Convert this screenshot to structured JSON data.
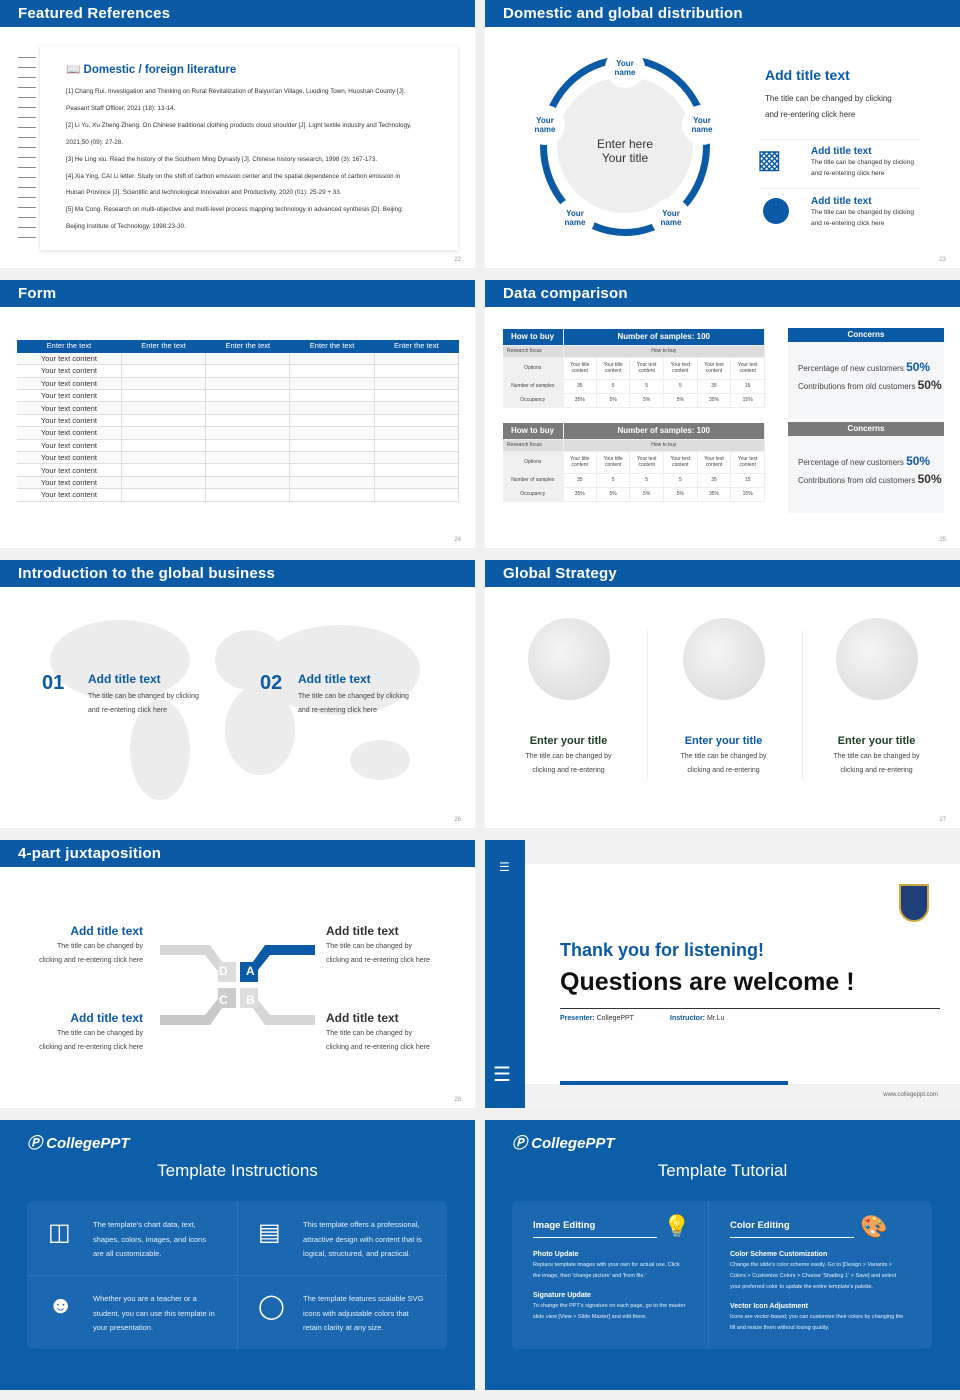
{
  "s22": {
    "title": "Featured References",
    "heading": "Domestic / foreign literature",
    "lines": [
      "[1] Chang Rui. Investigation and Thinking on Rural Revitalization of Baiyun'an Village, Luoding Town, Huoshan County [J].",
      "Peasant Staff Officer, 2021 (18): 13-14.",
      "[2] Li Yu, Xu Zheng Zheng. On Chinese traditional clothing products cloud shoulder [J]. Light textile industry and Technology,",
      "2021,50 (09): 27-28.",
      "[3] He Ling xiu. Read the history of the Southern Ming Dynasty [J]. Chinese history research, 1998 (3): 167-173.",
      "[4] Xia Ying, CAI Li letter. Study on the shift of carbon emission center and the spatial dependence of carbon emission in",
      "Hunan Province [J]. Scientific and technological Innovation and Productivity, 2020 (01): 25-29 + 33.",
      "[5] Ma Cong. Research on multi-objective and multi-level process mapping technology in advanced synthesis [D]. Beijing:",
      "Beijing Institute of Technology, 1998:23-30."
    ],
    "page": "22"
  },
  "s23": {
    "title": "Domestic and global distribution",
    "ring_label": "Your name",
    "center1": "Enter here",
    "center2": "Your title",
    "main_title": "Add title text",
    "main_desc1": "The title can be changed by clicking",
    "main_desc2": "and re-entering click here",
    "items": [
      {
        "icon": "china-map-icon",
        "title": "Add title text",
        "d1": "The title can be changed by clicking",
        "d2": "and re-entering click here"
      },
      {
        "icon": "globe-icon",
        "title": "Add title text",
        "d1": "The title can be changed by clicking",
        "d2": "and re-entering click here"
      }
    ],
    "page": "23"
  },
  "s24": {
    "title": "Form",
    "headers": [
      "Enter the text",
      "Enter the text",
      "Enter the text",
      "Enter the text",
      "Enter the text"
    ],
    "row_text": "Your text content",
    "row_count": 12,
    "page": "24"
  },
  "s25": {
    "title": "Data comparison",
    "tables": [
      {
        "h1": "How to buy",
        "h2": "Number of samples: 100",
        "focus": "Research focus",
        "focus_val": "How to buy",
        "options": "Options",
        "opt_cols": [
          "Your title content",
          "Your title content",
          "Your text content",
          "Your text content",
          "Your text content",
          "Your text content"
        ],
        "samples_label": "Number of samples",
        "samples": [
          "35",
          "5",
          "5",
          "5",
          "35",
          "15"
        ],
        "occ_label": "Occupancy",
        "occ": [
          "35%",
          "5%",
          "5%",
          "5%",
          "35%",
          "15%"
        ],
        "color": "#0b5aa6"
      },
      {
        "h1": "How to buy",
        "h2": "Number of samples: 100",
        "focus": "Research focus",
        "focus_val": "How to buy",
        "options": "Options",
        "opt_cols": [
          "Your title content",
          "Your title content",
          "Your text content",
          "Your text content",
          "Your text content",
          "Your text content"
        ],
        "samples_label": "Number of samples",
        "samples": [
          "35",
          "5",
          "5",
          "5",
          "35",
          "15"
        ],
        "occ_label": "Occupancy",
        "occ": [
          "35%",
          "5%",
          "5%",
          "5%",
          "35%",
          "15%"
        ],
        "color": "#7a7a7a"
      }
    ],
    "concerns": [
      {
        "title": "Concerns",
        "new_label": "Percentage of new customers",
        "new_val": "50%",
        "old_label": "Contributions from old customers",
        "old_val": "50%",
        "color": "#0b5aa6"
      },
      {
        "title": "Concerns",
        "new_label": "Percentage of new customers",
        "new_val": "50%",
        "old_label": "Contributions from old customers",
        "old_val": "50%",
        "color": "#7a7a7a"
      }
    ],
    "page": "25"
  },
  "s26": {
    "title": "Introduction to the global business",
    "items": [
      {
        "num": "01",
        "title": "Add title text",
        "d1": "The title can be changed by clicking",
        "d2": "and re-entering click here"
      },
      {
        "num": "02",
        "title": "Add title text",
        "d1": "The title can be changed by clicking",
        "d2": "and re-entering click here"
      }
    ],
    "page": "26"
  },
  "s27": {
    "title": "Global Strategy",
    "items": [
      {
        "title": "Enter your title",
        "d1": "The title can be changed by",
        "d2": "clicking and re-entering"
      },
      {
        "title": "Enter your title",
        "d1": "The title can be changed by",
        "d2": "clicking and re-entering"
      },
      {
        "title": "Enter your title",
        "d1": "The title can be changed by",
        "d2": "clicking and re-entering"
      }
    ],
    "page": "27"
  },
  "s28": {
    "title": "4-part juxtaposition",
    "items": [
      {
        "title": "Add title text",
        "d1": "The title can be changed by",
        "d2": "clicking and re-entering click here"
      },
      {
        "title": "Add title text",
        "d1": "The title can be changed by",
        "d2": "clicking and re-entering click here"
      },
      {
        "title": "Add title text",
        "d1": "The title can be changed by",
        "d2": "clicking and re-entering click here"
      },
      {
        "title": "Add title text",
        "d1": "The title can be changed by",
        "d2": "clicking and re-entering click here"
      }
    ],
    "letters": [
      "A",
      "B",
      "C",
      "D"
    ],
    "page": "28"
  },
  "thanks": {
    "line1": "Thank you for listening!",
    "line2": "Questions are welcome !",
    "presenter_label": "Presenter:",
    "presenter": "CollegePPT",
    "instructor_label": "Instructor:",
    "instructor": "Mr.Lu",
    "url": "www.collegeppt.com"
  },
  "instr": {
    "logo": "CollegePPT",
    "title": "Template Instructions",
    "items": [
      {
        "icon": "presentation-icon",
        "l1": "The template's chart data, text,",
        "l2": "shapes, colors, images, and icons",
        "l3": "are all customizable."
      },
      {
        "icon": "layers-icon",
        "l1": "This template offers a professional,",
        "l2": "attractive design with content that is",
        "l3": "logical, structured, and practical."
      },
      {
        "icon": "user-board-icon",
        "l1": "Whether you are a teacher or a",
        "l2": "student, you can use this template in",
        "l3": "your presentation."
      },
      {
        "icon": "ball-icon",
        "l1": "The template features scalable SVG",
        "l2": "icons with adjustable colors that",
        "l3": "retain clarity at any size."
      }
    ]
  },
  "tut": {
    "logo": "CollegePPT",
    "title": "Template Tutorial",
    "cols": [
      {
        "head": "Image Editing",
        "icon": "lightbulb-icon",
        "s1": "Photo Update",
        "s1a": "Replace template images with your own for actual use. Click",
        "s1b": "the image, then 'change picture' and 'from file.'",
        "s2": "Signature Update",
        "s2a": "To change the PPT's signature on each page, go to the master",
        "s2b": "slide view [View > Slide Master] and edit there."
      },
      {
        "head": "Color Editing",
        "icon": "palette-icon",
        "s1": "Color Scheme Customization",
        "s1a": "Change the slide's color scheme easily. Go to [Design > Variants >",
        "s1b": "Colors > Customize Colors > Choose 'Shading 1' > Save] and select",
        "s1c": "your preferred color to update the entire template's palette.",
        "s2": "Vector Icon Adjustment",
        "s2a": "Icons are vector-based; you can customize their colors by changing the",
        "s2b": "fill and resize them without losing quality."
      }
    ]
  }
}
